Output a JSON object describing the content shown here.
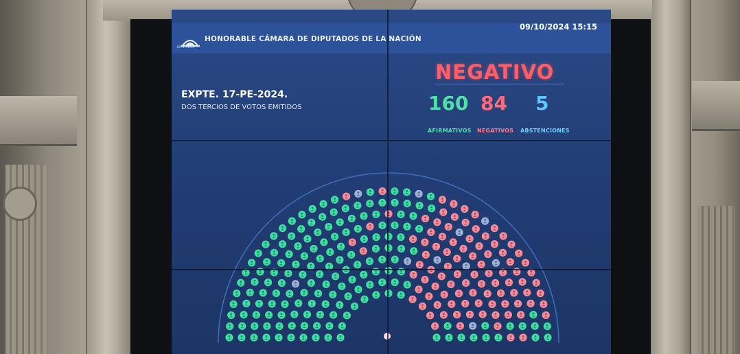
{
  "header": {
    "institution": "HONORABLE CÁMARA DE DIPUTADOS DE LA NACIÓN",
    "logo_text": "DIPUTADOS",
    "datetime": "09/10/2024 15:15"
  },
  "motion": {
    "expediente": "EXPTE. 17-PE-2024.",
    "requirement": "DOS TERCIOS DE VOTOS EMITIDOS"
  },
  "result": {
    "outcome": "NEGATIVO",
    "afirmativos": {
      "count": "160",
      "label": "AFIRMATIVOS"
    },
    "negativos": {
      "count": "84",
      "label": "NEGATIVOS"
    },
    "abstenciones": {
      "count": "5",
      "label": "ABSTENCIONES"
    }
  },
  "colors": {
    "afirmativo": "#3ee0a0",
    "negativo": "#ff8a95",
    "abstencion": "#9fb2d4",
    "screen": "#223e76",
    "outcome": "#ff5e68"
  },
  "icons": {
    "seat": "person-dot-icon",
    "logo": "chamber-logo-icon"
  }
}
